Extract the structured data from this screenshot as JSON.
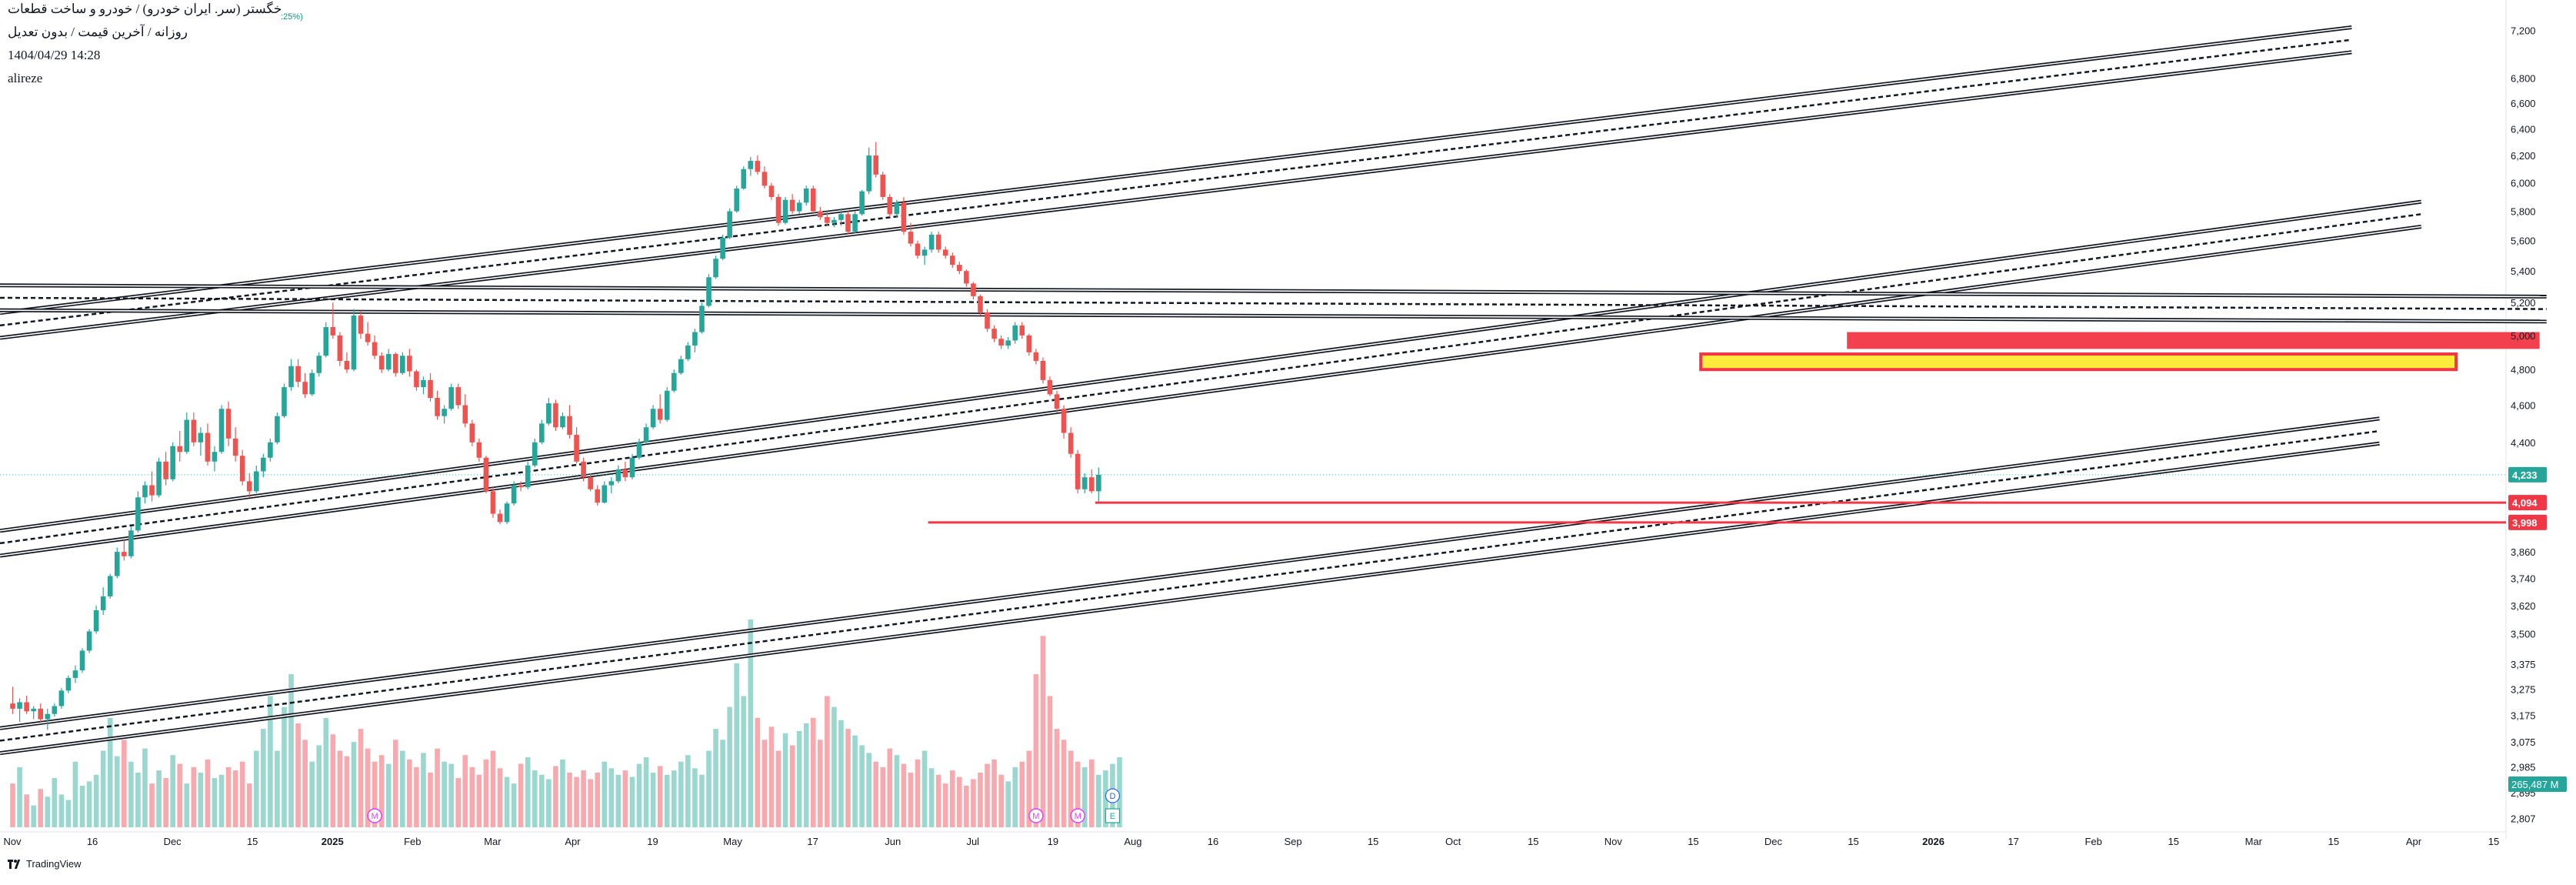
{
  "header": {
    "symbol_line": "خگستر (سر. ایران خودرو) / خودرو و ساخت قطعات",
    "interval_line": "روزانه / آخرین قیمت / بدون تعدیل",
    "datetime_line": "1404/04/29 14:28",
    "author_line": "alireze",
    "change_snippet": ":25%)"
  },
  "brand": {
    "label": "TradingView"
  },
  "colors": {
    "up": "#26a69a",
    "down": "#ef5350",
    "volume_up": "#9ad8cf",
    "volume_down": "#f7a9ad",
    "zone_red": "#f23645",
    "zone_yellow": "#ffeb3b",
    "event_marker": "#e040fb"
  },
  "chart_data": {
    "type": "candlestick",
    "y_scale": "log",
    "y_ticks": [
      "7,200",
      "6,800",
      "6,600",
      "6,400",
      "6,200",
      "6,000",
      "5,800",
      "5,600",
      "5,400",
      "5,200",
      "5,000",
      "4,800",
      "4,600",
      "4,400",
      "3,860",
      "3,740",
      "3,620",
      "3,500",
      "3,375",
      "3,275",
      "3,175",
      "3,075",
      "2,985",
      "2,895",
      "2,807"
    ],
    "y_tick_values": [
      7200,
      6800,
      6600,
      6400,
      6200,
      6000,
      5800,
      5600,
      5400,
      5200,
      5000,
      4800,
      4600,
      4400,
      3860,
      3740,
      3620,
      3500,
      3375,
      3275,
      3175,
      3075,
      2985,
      2895,
      2807
    ],
    "x_ticks": [
      "Nov",
      "16",
      "Dec",
      "15",
      "2025",
      "Feb",
      "Mar",
      "Apr",
      "19",
      "May",
      "17",
      "Jun",
      "Jul",
      "19",
      "Aug",
      "16",
      "Sep",
      "15",
      "Oct",
      "15",
      "Nov",
      "15",
      "Dec",
      "15",
      "2026",
      "17",
      "Feb",
      "15",
      "Mar",
      "15",
      "Apr",
      "15"
    ],
    "x_tick_bold": [
      "2025",
      "2026"
    ],
    "price_labels": [
      {
        "text": "4,233",
        "value": 4233,
        "kind": "current"
      },
      {
        "text": "4,094",
        "value": 4094,
        "kind": "level"
      },
      {
        "text": "3,998",
        "value": 3998,
        "kind": "level"
      }
    ],
    "volume_label": "265,487 M",
    "event_markers": [
      {
        "text": "M",
        "bar": 52
      },
      {
        "text": "M",
        "bar": 147
      },
      {
        "text": "M",
        "bar": 153
      }
    ],
    "future_markers": [
      {
        "text": "D",
        "shape": "circle"
      },
      {
        "text": "E",
        "shape": "square"
      }
    ],
    "candles": [
      [
        3220,
        3285,
        3180,
        3200
      ],
      [
        3200,
        3240,
        3150,
        3225
      ],
      [
        3225,
        3250,
        3180,
        3190
      ],
      [
        3190,
        3210,
        3160,
        3200
      ],
      [
        3200,
        3220,
        3150,
        3160
      ],
      [
        3160,
        3200,
        3120,
        3180
      ],
      [
        3180,
        3220,
        3170,
        3210
      ],
      [
        3210,
        3280,
        3200,
        3270
      ],
      [
        3270,
        3330,
        3260,
        3320
      ],
      [
        3320,
        3370,
        3300,
        3350
      ],
      [
        3350,
        3440,
        3340,
        3430
      ],
      [
        3430,
        3520,
        3420,
        3510
      ],
      [
        3510,
        3620,
        3500,
        3600
      ],
      [
        3600,
        3700,
        3580,
        3660
      ],
      [
        3660,
        3760,
        3650,
        3750
      ],
      [
        3750,
        3880,
        3740,
        3860
      ],
      [
        3860,
        3920,
        3820,
        3840
      ],
      [
        3840,
        3980,
        3830,
        3960
      ],
      [
        3960,
        4150,
        3950,
        4120
      ],
      [
        4120,
        4200,
        4090,
        4180
      ],
      [
        4180,
        4250,
        4100,
        4130
      ],
      [
        4130,
        4320,
        4120,
        4300
      ],
      [
        4300,
        4350,
        4180,
        4210
      ],
      [
        4210,
        4400,
        4200,
        4380
      ],
      [
        4380,
        4460,
        4300,
        4350
      ],
      [
        4350,
        4560,
        4340,
        4520
      ],
      [
        4520,
        4560,
        4380,
        4400
      ],
      [
        4400,
        4480,
        4330,
        4450
      ],
      [
        4450,
        4500,
        4280,
        4300
      ],
      [
        4300,
        4380,
        4250,
        4350
      ],
      [
        4350,
        4600,
        4340,
        4580
      ],
      [
        4580,
        4620,
        4380,
        4420
      ],
      [
        4420,
        4480,
        4300,
        4330
      ],
      [
        4330,
        4360,
        4180,
        4200
      ],
      [
        4200,
        4240,
        4120,
        4150
      ],
      [
        4150,
        4280,
        4140,
        4250
      ],
      [
        4250,
        4340,
        4220,
        4320
      ],
      [
        4320,
        4420,
        4300,
        4400
      ],
      [
        4400,
        4560,
        4390,
        4540
      ],
      [
        4540,
        4720,
        4530,
        4700
      ],
      [
        4700,
        4860,
        4680,
        4820
      ],
      [
        4820,
        4860,
        4700,
        4730
      ],
      [
        4730,
        4780,
        4640,
        4660
      ],
      [
        4660,
        4800,
        4650,
        4780
      ],
      [
        4780,
        4900,
        4760,
        4880
      ],
      [
        4880,
        5080,
        4870,
        5050
      ],
      [
        5050,
        5200,
        4980,
        5000
      ],
      [
        5000,
        5020,
        4820,
        4850
      ],
      [
        4850,
        4900,
        4780,
        4800
      ],
      [
        4800,
        5160,
        4790,
        5120
      ],
      [
        5120,
        5150,
        4980,
        5010
      ],
      [
        5010,
        5080,
        4940,
        4960
      ],
      [
        4960,
        5000,
        4860,
        4880
      ],
      [
        4880,
        4900,
        4780,
        4800
      ],
      [
        4800,
        4920,
        4790,
        4890
      ],
      [
        4890,
        4900,
        4760,
        4780
      ],
      [
        4780,
        4900,
        4770,
        4880
      ],
      [
        4880,
        4920,
        4760,
        4790
      ],
      [
        4790,
        4800,
        4680,
        4700
      ],
      [
        4700,
        4760,
        4660,
        4740
      ],
      [
        4740,
        4780,
        4620,
        4640
      ],
      [
        4640,
        4680,
        4520,
        4540
      ],
      [
        4540,
        4600,
        4500,
        4580
      ],
      [
        4580,
        4720,
        4570,
        4700
      ],
      [
        4700,
        4720,
        4580,
        4600
      ],
      [
        4600,
        4660,
        4480,
        4500
      ],
      [
        4500,
        4520,
        4380,
        4400
      ],
      [
        4400,
        4420,
        4300,
        4320
      ],
      [
        4320,
        4330,
        4140,
        4150
      ],
      [
        4150,
        4170,
        4020,
        4040
      ],
      [
        4040,
        4060,
        3990,
        4000
      ],
      [
        4000,
        4100,
        3990,
        4090
      ],
      [
        4090,
        4200,
        4080,
        4180
      ],
      [
        4180,
        4200,
        4150,
        4170
      ],
      [
        4170,
        4300,
        4160,
        4280
      ],
      [
        4280,
        4420,
        4270,
        4400
      ],
      [
        4400,
        4520,
        4390,
        4500
      ],
      [
        4500,
        4640,
        4490,
        4610
      ],
      [
        4610,
        4630,
        4460,
        4480
      ],
      [
        4480,
        4560,
        4470,
        4540
      ],
      [
        4540,
        4600,
        4420,
        4440
      ],
      [
        4440,
        4480,
        4290,
        4300
      ],
      [
        4300,
        4320,
        4200,
        4220
      ],
      [
        4220,
        4240,
        4150,
        4160
      ],
      [
        4160,
        4180,
        4080,
        4094
      ],
      [
        4094,
        4200,
        4090,
        4180
      ],
      [
        4180,
        4220,
        4140,
        4200
      ],
      [
        4200,
        4280,
        4190,
        4260
      ],
      [
        4260,
        4300,
        4200,
        4220
      ],
      [
        4220,
        4340,
        4210,
        4320
      ],
      [
        4320,
        4420,
        4310,
        4400
      ],
      [
        4400,
        4500,
        4390,
        4480
      ],
      [
        4480,
        4600,
        4470,
        4580
      ],
      [
        4580,
        4660,
        4500,
        4520
      ],
      [
        4520,
        4700,
        4510,
        4680
      ],
      [
        4680,
        4800,
        4670,
        4780
      ],
      [
        4780,
        4880,
        4770,
        4860
      ],
      [
        4860,
        4960,
        4850,
        4940
      ],
      [
        4940,
        5040,
        4900,
        5020
      ],
      [
        5020,
        5200,
        5010,
        5180
      ],
      [
        5180,
        5380,
        5170,
        5360
      ],
      [
        5360,
        5500,
        5350,
        5480
      ],
      [
        5480,
        5640,
        5470,
        5620
      ],
      [
        5620,
        5820,
        5610,
        5800
      ],
      [
        5800,
        5980,
        5790,
        5960
      ],
      [
        5960,
        6120,
        5950,
        6100
      ],
      [
        6100,
        6190,
        6050,
        6160
      ],
      [
        6160,
        6200,
        6060,
        6080
      ],
      [
        6080,
        6120,
        5960,
        5980
      ],
      [
        5980,
        6000,
        5880,
        5900
      ],
      [
        5900,
        5920,
        5700,
        5720
      ],
      [
        5720,
        5900,
        5710,
        5880
      ],
      [
        5880,
        5920,
        5780,
        5800
      ],
      [
        5800,
        5880,
        5780,
        5860
      ],
      [
        5860,
        5980,
        5840,
        5960
      ],
      [
        5960,
        5980,
        5780,
        5800
      ],
      [
        5800,
        5830,
        5740,
        5760
      ],
      [
        5760,
        5800,
        5700,
        5720
      ],
      [
        5720,
        5760,
        5690,
        5740
      ],
      [
        5740,
        5820,
        5700,
        5780
      ],
      [
        5780,
        5800,
        5640,
        5660
      ],
      [
        5660,
        5800,
        5650,
        5780
      ],
      [
        5780,
        5950,
        5770,
        5940
      ],
      [
        5940,
        6260,
        5920,
        6200
      ],
      [
        6200,
        6300,
        6040,
        6060
      ],
      [
        6060,
        6080,
        5880,
        5900
      ],
      [
        5900,
        5920,
        5760,
        5780
      ],
      [
        5780,
        5880,
        5760,
        5860
      ],
      [
        5860,
        5900,
        5640,
        5660
      ],
      [
        5660,
        5720,
        5560,
        5580
      ],
      [
        5580,
        5600,
        5480,
        5500
      ],
      [
        5500,
        5560,
        5440,
        5540
      ],
      [
        5540,
        5660,
        5520,
        5640
      ],
      [
        5640,
        5660,
        5520,
        5540
      ],
      [
        5540,
        5560,
        5480,
        5500
      ],
      [
        5500,
        5520,
        5420,
        5440
      ],
      [
        5440,
        5460,
        5380,
        5400
      ],
      [
        5400,
        5410,
        5300,
        5320
      ],
      [
        5320,
        5330,
        5220,
        5240
      ],
      [
        5240,
        5250,
        5120,
        5140
      ],
      [
        5140,
        5160,
        5020,
        5040
      ],
      [
        5040,
        5060,
        4960,
        4980
      ],
      [
        4980,
        5000,
        4920,
        4940
      ],
      [
        4940,
        4990,
        4920,
        4970
      ],
      [
        4970,
        5080,
        4950,
        5060
      ],
      [
        5060,
        5080,
        4980,
        5000
      ],
      [
        5000,
        5010,
        4880,
        4900
      ],
      [
        4900,
        4920,
        4830,
        4850
      ],
      [
        4850,
        4870,
        4720,
        4740
      ],
      [
        4740,
        4760,
        4650,
        4660
      ],
      [
        4660,
        4680,
        4560,
        4580
      ],
      [
        4580,
        4600,
        4420,
        4450
      ],
      [
        4450,
        4480,
        4320,
        4340
      ],
      [
        4340,
        4360,
        4140,
        4160
      ],
      [
        4160,
        4240,
        4140,
        4220
      ],
      [
        4220,
        4260,
        4140,
        4150
      ],
      [
        4150,
        4270,
        4100,
        4233
      ]
    ],
    "volumes": [
      40,
      55,
      30,
      20,
      35,
      28,
      45,
      30,
      25,
      60,
      38,
      42,
      48,
      70,
      100,
      65,
      80,
      60,
      50,
      72,
      40,
      52,
      45,
      66,
      58,
      40,
      55,
      50,
      62,
      45,
      48,
      55,
      52,
      60,
      40,
      70,
      90,
      120,
      70,
      110,
      140,
      95,
      80,
      60,
      75,
      100,
      85,
      70,
      65,
      78,
      90,
      72,
      60,
      66,
      58,
      80,
      70,
      62,
      55,
      68,
      50,
      72,
      60,
      58,
      45,
      66,
      55,
      48,
      62,
      70,
      54,
      46,
      40,
      58,
      64,
      52,
      48,
      44,
      56,
      62,
      50,
      46,
      52,
      44,
      50,
      60,
      54,
      48,
      52,
      46,
      58,
      64,
      50,
      56,
      48,
      52,
      60,
      66,
      54,
      48,
      70,
      90,
      80,
      110,
      150,
      120,
      190,
      100,
      80,
      92,
      70,
      86,
      75,
      88,
      95,
      100,
      80,
      120,
      110,
      98,
      90,
      84,
      75,
      68,
      60,
      55,
      72,
      66,
      58,
      50,
      62,
      70,
      54,
      48,
      40,
      52,
      46,
      38,
      44,
      50,
      58,
      62,
      48,
      42,
      55,
      60,
      70,
      140,
      175,
      120,
      90,
      80,
      70,
      60,
      55,
      62,
      48,
      52,
      58,
      64
    ],
    "channels": [
      {
        "name": "",
        "type": "rising",
        "a": [
          0,
          5060
        ],
        "b": [
          336,
          7120
        ],
        "offset_pct": 1.5
      },
      {
        "name": "",
        "type": "rising",
        "a": [
          0,
          3900
        ],
        "b": [
          346,
          5780
        ],
        "offset_pct": 1.5
      },
      {
        "name": "",
        "type": "rising",
        "a": [
          0,
          3080
        ],
        "b": [
          340,
          4460
        ],
        "offset_pct": 1.5
      },
      {
        "name": "",
        "type": "flat",
        "a": [
          0,
          5230
        ],
        "b": [
          364,
          5160
        ],
        "offset_pct": 1.5
      }
    ],
    "zones": [
      {
        "kind": "red-fill",
        "x0": 264,
        "x1": 363,
        "y_top": 5020,
        "y_bottom": 4920
      },
      {
        "kind": "yellow-box",
        "x0": 243,
        "x1": 351,
        "y_top": 4890,
        "y_bottom": 4800
      }
    ],
    "level_lines": [
      {
        "value": 4094,
        "x0": 156,
        "label": "4,094"
      },
      {
        "value": 3998,
        "x0": 132,
        "label": "3,998"
      }
    ]
  }
}
